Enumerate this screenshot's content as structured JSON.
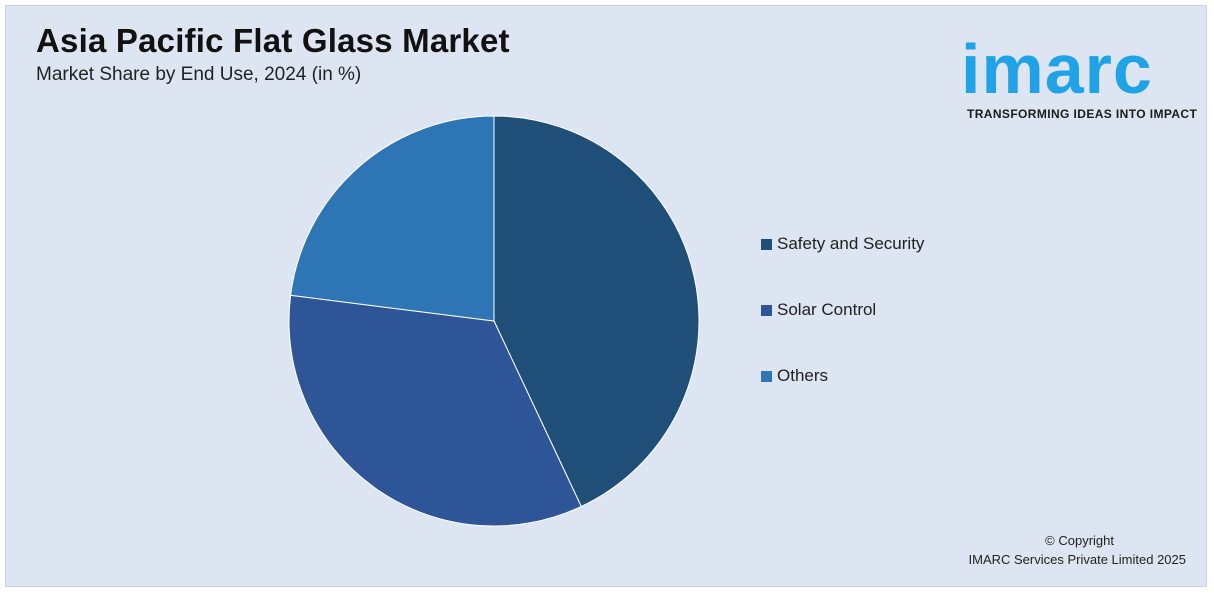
{
  "header": {
    "title": "Asia Pacific Flat Glass Market",
    "subtitle": "Market Share by End Use, 2024 (in %)"
  },
  "logo": {
    "wordmark": "imarc",
    "tagline": "TRANSFORMING IDEAS INTO IMPACT",
    "color": "#1fa3e6"
  },
  "chart_data": {
    "type": "pie",
    "title": "Asia Pacific Flat Glass Market",
    "subtitle": "Market Share by End Use, 2024 (in %)",
    "start_angle_deg": 0,
    "direction": "clockwise",
    "legend_position": "right",
    "slices": [
      {
        "label": "Safety and Security",
        "value": 43,
        "color": "#1f4e79"
      },
      {
        "label": "Solar Control",
        "value": 34,
        "color": "#2e5597"
      },
      {
        "label": "Others",
        "value": 23,
        "color": "#2e75b6"
      }
    ]
  },
  "footer": {
    "copyright_line1": "© Copyright",
    "copyright_line2": "IMARC Services Private Limited 2025"
  }
}
